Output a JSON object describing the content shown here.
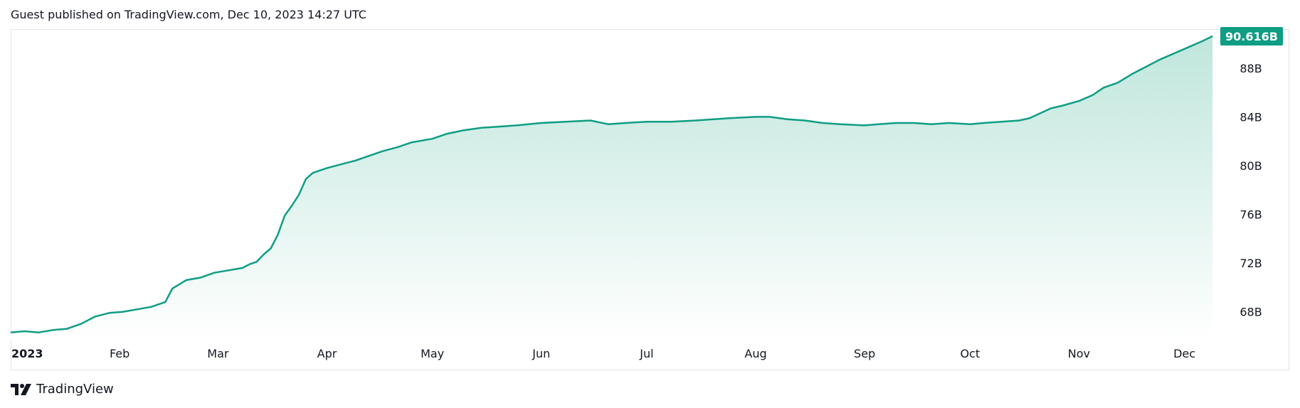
{
  "header": {
    "caption": "Guest published on TradingView.com, Dec 10, 2023 14:27 UTC"
  },
  "footer": {
    "brand": "TradingView",
    "logo_icon": "tradingview-logo-icon"
  },
  "colors": {
    "line": "#0f9d84",
    "fill_top": "#bfe6dc",
    "fill_bottom": "#ffffff",
    "price_tag_bg": "#0f9d84",
    "border": "#e0e3eb"
  },
  "chart_data": {
    "type": "area",
    "title": "",
    "xlabel": "",
    "ylabel": "",
    "ylim": [
      65.7,
      91.2
    ],
    "y_ticks": [
      {
        "value": 68,
        "label": "68B"
      },
      {
        "value": 72,
        "label": "72B"
      },
      {
        "value": 76,
        "label": "76B"
      },
      {
        "value": 80,
        "label": "80B"
      },
      {
        "value": 84,
        "label": "84B"
      },
      {
        "value": 88,
        "label": "88B"
      }
    ],
    "x_ticks": [
      {
        "label": "2023",
        "date": "2023-01-01",
        "year": true
      },
      {
        "label": "Feb",
        "date": "2023-02-01"
      },
      {
        "label": "Mar",
        "date": "2023-03-01"
      },
      {
        "label": "Apr",
        "date": "2023-04-01"
      },
      {
        "label": "May",
        "date": "2023-05-01"
      },
      {
        "label": "Jun",
        "date": "2023-06-01"
      },
      {
        "label": "Jul",
        "date": "2023-07-01"
      },
      {
        "label": "Aug",
        "date": "2023-08-01"
      },
      {
        "label": "Sep",
        "date": "2023-09-01"
      },
      {
        "label": "Oct",
        "date": "2023-10-01"
      },
      {
        "label": "Nov",
        "date": "2023-11-01"
      },
      {
        "label": "Dec",
        "date": "2023-12-01"
      }
    ],
    "last_value_label": "90.616B",
    "series": [
      {
        "x": [
          "2023-01-01",
          "2023-01-05",
          "2023-01-09",
          "2023-01-13",
          "2023-01-17",
          "2023-01-21",
          "2023-01-25",
          "2023-01-29",
          "2023-02-02",
          "2023-02-06",
          "2023-02-10",
          "2023-02-14",
          "2023-02-16",
          "2023-02-20",
          "2023-02-24",
          "2023-02-28",
          "2023-03-04",
          "2023-03-08",
          "2023-03-10",
          "2023-03-12",
          "2023-03-14",
          "2023-03-16",
          "2023-03-18",
          "2023-03-20",
          "2023-03-22",
          "2023-03-24",
          "2023-03-26",
          "2023-03-28",
          "2023-04-01",
          "2023-04-05",
          "2023-04-09",
          "2023-04-13",
          "2023-04-17",
          "2023-04-21",
          "2023-04-25",
          "2023-05-01",
          "2023-05-05",
          "2023-05-10",
          "2023-05-15",
          "2023-05-20",
          "2023-05-25",
          "2023-06-01",
          "2023-06-08",
          "2023-06-15",
          "2023-06-20",
          "2023-06-25",
          "2023-07-01",
          "2023-07-08",
          "2023-07-15",
          "2023-07-20",
          "2023-07-25",
          "2023-08-01",
          "2023-08-05",
          "2023-08-10",
          "2023-08-15",
          "2023-08-20",
          "2023-08-25",
          "2023-09-01",
          "2023-09-05",
          "2023-09-10",
          "2023-09-15",
          "2023-09-20",
          "2023-09-25",
          "2023-10-01",
          "2023-10-05",
          "2023-10-10",
          "2023-10-15",
          "2023-10-18",
          "2023-10-21",
          "2023-10-24",
          "2023-10-27",
          "2023-11-01",
          "2023-11-05",
          "2023-11-08",
          "2023-11-12",
          "2023-11-16",
          "2023-11-20",
          "2023-11-24",
          "2023-11-28",
          "2023-12-02",
          "2023-12-06",
          "2023-12-09"
        ],
        "values": [
          66.3,
          66.4,
          66.3,
          66.5,
          66.6,
          67.0,
          67.6,
          67.9,
          68.0,
          68.2,
          68.4,
          68.8,
          69.9,
          70.6,
          70.8,
          71.2,
          71.4,
          71.6,
          71.9,
          72.1,
          72.7,
          73.2,
          74.3,
          75.9,
          76.7,
          77.6,
          78.9,
          79.4,
          79.8,
          80.1,
          80.4,
          80.8,
          81.2,
          81.5,
          81.9,
          82.2,
          82.6,
          82.9,
          83.1,
          83.2,
          83.3,
          83.5,
          83.6,
          83.7,
          83.4,
          83.5,
          83.6,
          83.6,
          83.7,
          83.8,
          83.9,
          84.0,
          84.0,
          83.8,
          83.7,
          83.5,
          83.4,
          83.3,
          83.4,
          83.5,
          83.5,
          83.4,
          83.5,
          83.4,
          83.5,
          83.6,
          83.7,
          83.9,
          84.3,
          84.7,
          84.9,
          85.3,
          85.8,
          86.4,
          86.8,
          87.5,
          88.1,
          88.7,
          89.2,
          89.7,
          90.2,
          90.62
        ]
      }
    ]
  }
}
